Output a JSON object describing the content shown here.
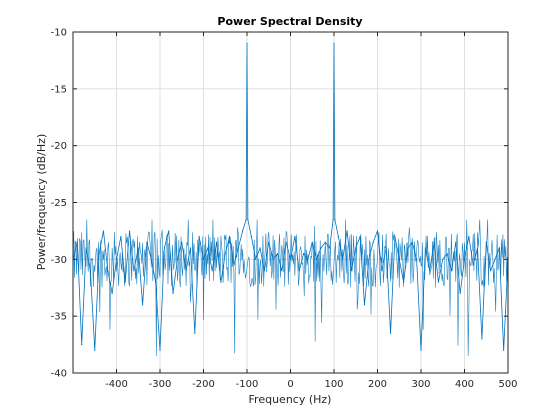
{
  "chart_data": {
    "type": "line",
    "title": "Power Spectral Density",
    "xlabel": "Frequency (Hz)",
    "ylabel": "Power/frequency (dB/Hz)",
    "xlim": [
      -500,
      500
    ],
    "ylim": [
      -40,
      -10
    ],
    "xticks": [
      -400,
      -300,
      -200,
      -100,
      0,
      100,
      200,
      300,
      400,
      500
    ],
    "yticks": [
      -40,
      -35,
      -30,
      -25,
      -20,
      -15,
      -10
    ],
    "grid": true,
    "noise_floor": -30,
    "series": [
      {
        "color": "#0072bd",
        "x": [
          -500,
          -490,
          -480,
          -470,
          -460,
          -450,
          -440,
          -430,
          -420,
          -410,
          -400,
          -390,
          -380,
          -370,
          -360,
          -350,
          -340,
          -330,
          -320,
          -310,
          -300,
          -290,
          -280,
          -270,
          -260,
          -250,
          -240,
          -230,
          -220,
          -210,
          -200,
          -190,
          -180,
          -170,
          -160,
          -150,
          -140,
          -130,
          -120,
          -110,
          -102,
          -100,
          -98,
          -90,
          -80,
          -70,
          -60,
          -50,
          -40,
          -30,
          -20,
          -10,
          0,
          10,
          20,
          30,
          40,
          50,
          60,
          70,
          80,
          90,
          98,
          100,
          102,
          110,
          120,
          130,
          140,
          150,
          160,
          170,
          180,
          190,
          200,
          210,
          220,
          230,
          240,
          250,
          260,
          270,
          280,
          290,
          300,
          310,
          320,
          330,
          340,
          350,
          360,
          370,
          380,
          390,
          400,
          410,
          420,
          430,
          440,
          450,
          460,
          470,
          480,
          490,
          500
        ],
        "y": [
          -30,
          -28.5,
          -37.5,
          -29,
          -31,
          -38,
          -29.5,
          -27.5,
          -31,
          -33,
          -30,
          -28,
          -32,
          -27.5,
          -31,
          -29,
          -34,
          -28.5,
          -30,
          -32,
          -38,
          -29,
          -27.5,
          -33,
          -30,
          -28.5,
          -31,
          -29,
          -36.5,
          -28,
          -30,
          -29,
          -31,
          -28.5,
          -32,
          -29.5,
          -28,
          -30.5,
          -29,
          -27.5,
          -26.5,
          -11,
          -26.5,
          -28,
          -30,
          -29,
          -31,
          -28.5,
          -30,
          -29.5,
          -31,
          -28.5,
          -30,
          -28,
          -31,
          -29.5,
          -30,
          -28.5,
          -30,
          -29,
          -28.5,
          -29,
          -26.5,
          -11,
          -26.5,
          -28,
          -30,
          -27.5,
          -31,
          -29,
          -28,
          -34,
          -30,
          -28.5,
          -27.5,
          -31,
          -29,
          -36.5,
          -28,
          -30,
          -32,
          -29,
          -28.5,
          -30,
          -38,
          -29,
          -31,
          -28.5,
          -32,
          -30,
          -29.5,
          -31,
          -28.5,
          -33,
          -30,
          -28,
          -30.5,
          -29,
          -37,
          -28.5,
          -31,
          -30,
          -29,
          -38,
          -30
        ]
      }
    ]
  }
}
